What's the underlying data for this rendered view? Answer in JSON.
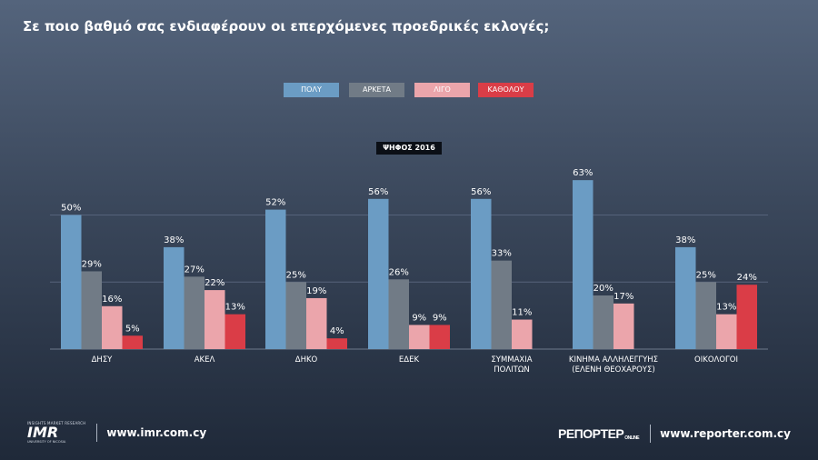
{
  "title": "Σε ποιο βαθμό σας ενδιαφέρουν οι επερχόμενες προεδρικές εκλογές;",
  "legend": [
    {
      "label": "ΠΟΛΥ",
      "color": "#6b9cc4"
    },
    {
      "label": "ΑΡΚΕΤΑ",
      "color": "#717b86"
    },
    {
      "label": "ΛΙΓΟ",
      "color": "#eba5ab"
    },
    {
      "label": "ΚΑΘΟΛΟΥ",
      "color": "#da3d47"
    }
  ],
  "subtitle": "ΨΗΦΟΣ 2016",
  "chart_data": {
    "type": "bar",
    "title": "Σε ποιο βαθμό σας ενδιαφέρουν οι επερχόμενες προεδρικές εκλογές;",
    "subtitle": "ΨΗΦΟΣ 2016",
    "categories": [
      [
        "ΔΗΣΥ"
      ],
      [
        "ΑΚΕΛ"
      ],
      [
        "ΔΗΚΟ"
      ],
      [
        "ΕΔΕΚ"
      ],
      [
        "ΣΥΜΜΑΧΙΑ",
        "ΠΟΛΙΤΩΝ"
      ],
      [
        "ΚΙΝΗΜΑ ΑΛΛΗΛΕΓΓΥΗΣ",
        "(ΕΛΕΝΗ ΘΕΟΧΑΡΟΥΣ)"
      ],
      [
        "ΟΙΚΟΛΟΓΟΙ"
      ]
    ],
    "series": [
      {
        "name": "ΠΟΛΥ",
        "color": "#6b9cc4",
        "values": [
          50,
          38,
          52,
          56,
          56,
          63,
          38
        ]
      },
      {
        "name": "ΑΡΚΕΤΑ",
        "color": "#717b86",
        "values": [
          29,
          27,
          25,
          26,
          33,
          20,
          25
        ]
      },
      {
        "name": "ΛΙΓΟ",
        "color": "#eba5ab",
        "values": [
          16,
          22,
          19,
          9,
          11,
          17,
          13
        ]
      },
      {
        "name": "ΚΑΘΟΛΟΥ",
        "color": "#da3d47",
        "values": [
          5,
          13,
          4,
          9,
          null,
          null,
          24
        ]
      }
    ],
    "value_suffix": "%",
    "ylim": [
      0,
      70
    ],
    "grid": true,
    "legend_position": "top-center"
  },
  "footer": {
    "imr_logo_top": "INSIGHTS MARKET RESEARCH",
    "imr_logo": "IMR",
    "imr_logo_sub": "UNIVERSITY OF NICOSIA",
    "left_url": "www.imr.com.cy",
    "reporter_logo": "ΡΕΠΟΡΤΕΡ",
    "reporter_online": "ONLINE",
    "right_url": "www.reporter.com.cy"
  }
}
